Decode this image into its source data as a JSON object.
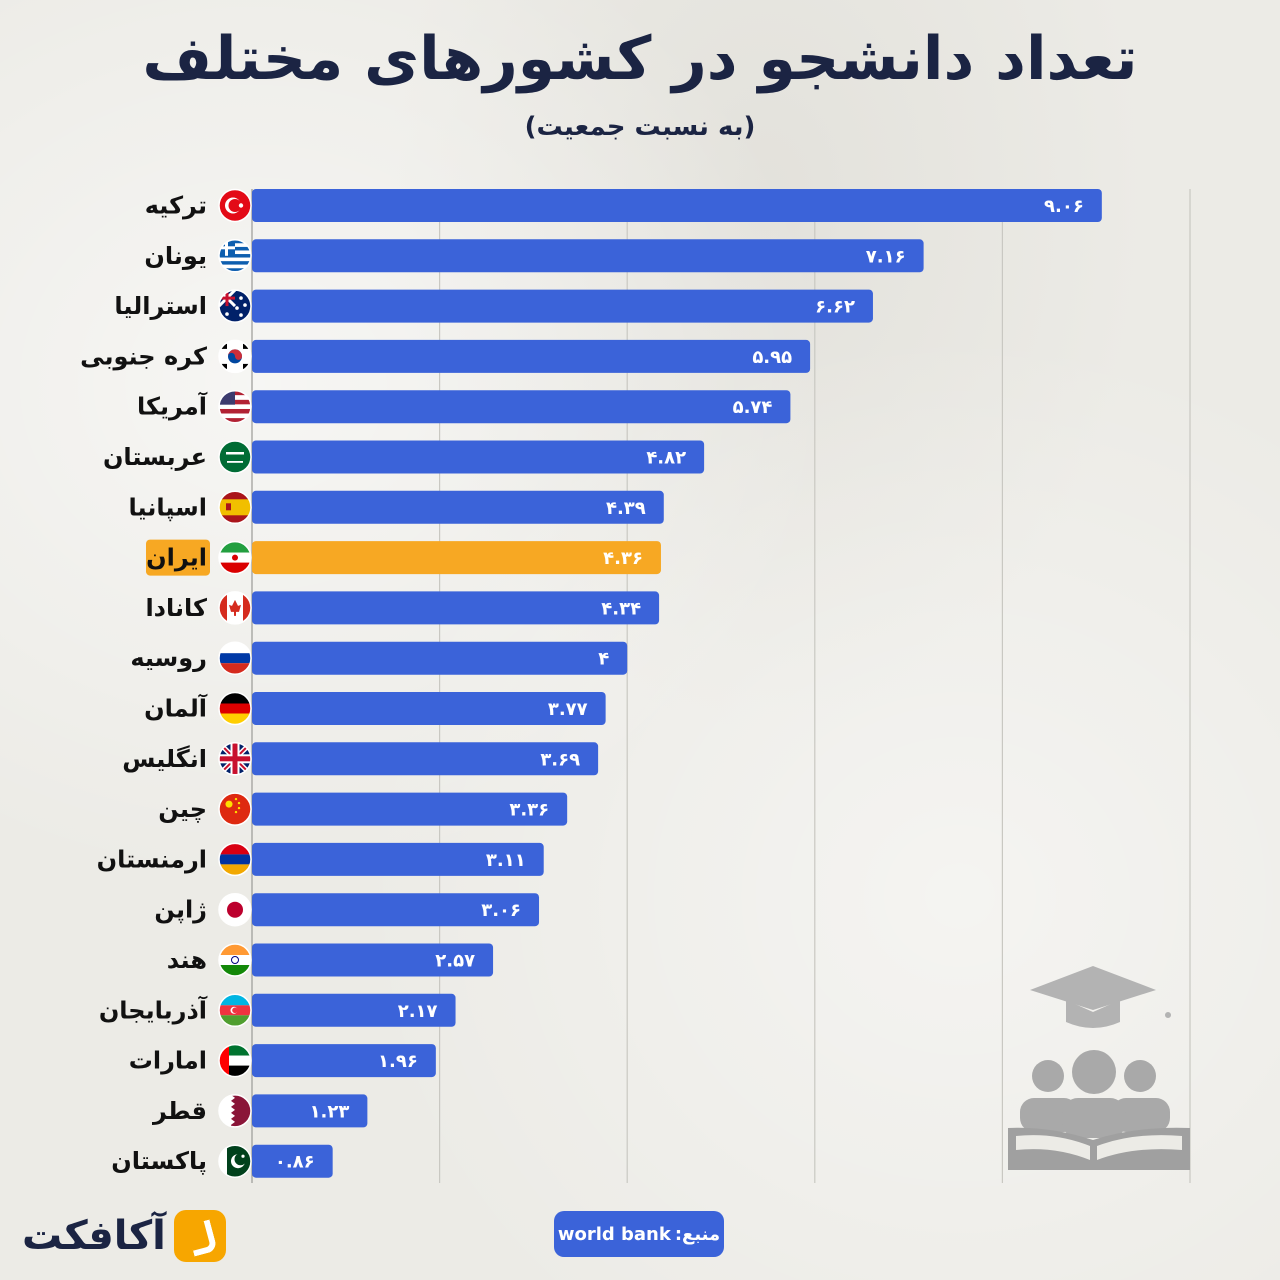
{
  "header": {
    "title": "تعداد دانشجو در کشورهای مختلف",
    "subtitle": "(به نسبت جمعیت)"
  },
  "footer": {
    "logo_text": "آکافکت",
    "source_label": "منبع:",
    "source_name": "world bank"
  },
  "colors": {
    "bar": "#3b63d9",
    "highlight": "#f7a823",
    "label_text": "#111111"
  },
  "chart_data": {
    "type": "bar",
    "orientation": "horizontal",
    "categories": [
      "ترکیه",
      "یونان",
      "استرالیا",
      "کره جنوبی",
      "آمریکا",
      "عربستان",
      "اسپانیا",
      "ایران",
      "کانادا",
      "روسیه",
      "آلمان",
      "انگلیس",
      "چین",
      "ارمنستان",
      "ژاپن",
      "هند",
      "آذربایجان",
      "امارات",
      "قطر",
      "پاکستان"
    ],
    "values": [
      9.06,
      7.16,
      6.62,
      5.95,
      5.74,
      4.82,
      4.39,
      4.36,
      4.34,
      4,
      3.77,
      3.69,
      3.36,
      3.11,
      3.06,
      2.57,
      2.17,
      1.96,
      1.23,
      0.86
    ],
    "value_labels": [
      "۹.۰۶",
      "۷.۱۶",
      "۶.۶۲",
      "۵.۹۵",
      "۵.۷۴",
      "۴.۸۲",
      "۴.۳۹",
      "۴.۳۶",
      "۴.۳۴",
      "۴",
      "۳.۷۷",
      "۳.۶۹",
      "۳.۳۶",
      "۳.۱۱",
      "۳.۰۶",
      "۲.۵۷",
      "۲.۱۷",
      "۱.۹۶",
      "۱.۲۳",
      "۰.۸۶"
    ],
    "flags": [
      "turkey-flag",
      "greece-flag",
      "australia-flag",
      "south-korea-flag",
      "usa-flag",
      "saudi-arabia-flag",
      "spain-flag",
      "iran-flag",
      "canada-flag",
      "russia-flag",
      "germany-flag",
      "uk-flag",
      "china-flag",
      "armenia-flag",
      "japan-flag",
      "india-flag",
      "azerbaijan-flag",
      "uae-flag",
      "qatar-flag",
      "pakistan-flag"
    ],
    "highlight_index": 7,
    "xlim": [
      0,
      10
    ],
    "grid": true,
    "gridlines_at": [
      0,
      2,
      4,
      6,
      8,
      10
    ]
  },
  "decoration": {
    "icon": "graduation-students-reading-icon"
  }
}
